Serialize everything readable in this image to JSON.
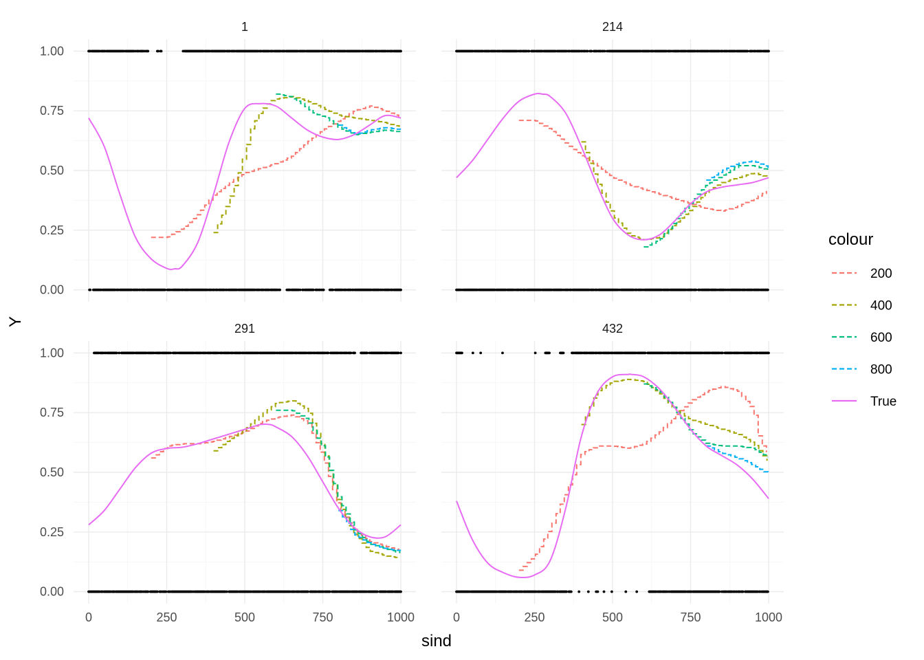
{
  "chart_data": {
    "type": "line",
    "xlabel": "sind",
    "ylabel": "Y",
    "xlim": [
      0,
      1000
    ],
    "ylim": [
      -0.05,
      1.05
    ],
    "x_ticks": [
      0,
      250,
      500,
      750,
      1000
    ],
    "x_tick_labels": [
      "0",
      "250",
      "500",
      "750",
      "1000"
    ],
    "y_ticks": [
      0,
      0.25,
      0.5,
      0.75,
      1.0
    ],
    "y_tick_labels": [
      "0.00",
      "0.25",
      "0.50",
      "0.75",
      "1.00"
    ],
    "grid": true,
    "legend": {
      "title": "colour",
      "position": "right",
      "entries": [
        {
          "name": "200",
          "color": "#F8766D",
          "dash": true
        },
        {
          "name": "400",
          "color": "#A3A500",
          "dash": true
        },
        {
          "name": "600",
          "color": "#00BF7D",
          "dash": true
        },
        {
          "name": "800",
          "color": "#00B0F6",
          "dash": true
        },
        {
          "name": "True",
          "color": "#E76BF3",
          "dash": false
        }
      ]
    },
    "points_description": "binary observations at Y=0 and Y=1 for each sind",
    "panels": [
      {
        "label": "1",
        "zero_gaps": [
          [
            615,
            630
          ],
          [
            755,
            770
          ]
        ],
        "one_gaps": [
          [
            195,
            215
          ],
          [
            235,
            255
          ],
          [
            260,
            300
          ]
        ],
        "series": [
          {
            "name": "True",
            "x": [
              0,
              50,
              100,
              150,
              200,
              250,
              275,
              300,
              350,
              400,
              450,
              500,
              550,
              600,
              650,
              700,
              750,
              800,
              850,
              900,
              950,
              1000
            ],
            "y": [
              0.72,
              0.6,
              0.4,
              0.22,
              0.13,
              0.09,
              0.088,
              0.1,
              0.2,
              0.4,
              0.62,
              0.76,
              0.78,
              0.77,
              0.72,
              0.67,
              0.64,
              0.63,
              0.65,
              0.69,
              0.73,
              0.72
            ]
          },
          {
            "name": "200",
            "x": [
              200,
              250,
              300,
              350,
              400,
              450,
              500,
              550,
              600,
              650,
              700,
              750,
              800,
              850,
              900,
              950,
              1000
            ],
            "y": [
              0.22,
              0.22,
              0.26,
              0.32,
              0.4,
              0.45,
              0.49,
              0.51,
              0.53,
              0.56,
              0.62,
              0.67,
              0.71,
              0.75,
              0.77,
              0.75,
              0.72
            ]
          },
          {
            "name": "400",
            "x": [
              400,
              440,
              470,
              500,
              520,
              550,
              580,
              600,
              650,
              700,
              750,
              800,
              850,
              900,
              950,
              1000
            ],
            "y": [
              0.24,
              0.35,
              0.45,
              0.58,
              0.68,
              0.75,
              0.79,
              0.8,
              0.81,
              0.79,
              0.76,
              0.73,
              0.72,
              0.71,
              0.7,
              0.68
            ]
          },
          {
            "name": "600",
            "x": [
              600,
              640,
              680,
              720,
              760,
              800,
              850,
              900,
              950,
              1000
            ],
            "y": [
              0.82,
              0.81,
              0.78,
              0.74,
              0.72,
              0.68,
              0.65,
              0.66,
              0.67,
              0.66
            ]
          },
          {
            "name": "800",
            "x": [
              800,
              850,
              900,
              950,
              1000
            ],
            "y": [
              0.69,
              0.65,
              0.67,
              0.68,
              0.67
            ]
          }
        ]
      },
      {
        "label": "214",
        "zero_gaps": [],
        "one_gaps": [],
        "series": [
          {
            "name": "True",
            "x": [
              0,
              50,
              100,
              150,
              200,
              250,
              275,
              300,
              350,
              400,
              450,
              500,
              550,
              600,
              650,
              700,
              750,
              800,
              850,
              900,
              950,
              1000
            ],
            "y": [
              0.47,
              0.54,
              0.63,
              0.72,
              0.79,
              0.82,
              0.82,
              0.81,
              0.74,
              0.6,
              0.44,
              0.3,
              0.23,
              0.21,
              0.23,
              0.29,
              0.36,
              0.41,
              0.43,
              0.44,
              0.45,
              0.47
            ]
          },
          {
            "name": "200",
            "x": [
              200,
              250,
              300,
              350,
              400,
              450,
              500,
              550,
              600,
              650,
              700,
              750,
              800,
              850,
              900,
              950,
              1000
            ],
            "y": [
              0.71,
              0.71,
              0.67,
              0.61,
              0.56,
              0.52,
              0.47,
              0.44,
              0.42,
              0.4,
              0.38,
              0.36,
              0.34,
              0.33,
              0.35,
              0.38,
              0.42
            ]
          },
          {
            "name": "400",
            "x": [
              400,
              450,
              500,
              550,
              600,
              650,
              700,
              750,
              800,
              850,
              900,
              950,
              1000
            ],
            "y": [
              0.62,
              0.45,
              0.31,
              0.23,
              0.21,
              0.22,
              0.28,
              0.34,
              0.41,
              0.45,
              0.47,
              0.49,
              0.47
            ]
          },
          {
            "name": "600",
            "x": [
              600,
              650,
              700,
              750,
              800,
              850,
              900,
              950,
              1000
            ],
            "y": [
              0.18,
              0.21,
              0.29,
              0.37,
              0.44,
              0.48,
              0.52,
              0.52,
              0.5
            ]
          },
          {
            "name": "800",
            "x": [
              800,
              850,
              900,
              950,
              1000
            ],
            "y": [
              0.46,
              0.5,
              0.53,
              0.54,
              0.51
            ]
          }
        ]
      },
      {
        "label": "291",
        "zero_gaps": [],
        "one_gaps": [
          [
            0,
            15
          ],
          [
            855,
            870
          ]
        ],
        "series": [
          {
            "name": "True",
            "x": [
              0,
              50,
              100,
              150,
              200,
              250,
              300,
              350,
              400,
              450,
              500,
              550,
              580,
              600,
              650,
              700,
              750,
              800,
              850,
              900,
              950,
              1000
            ],
            "y": [
              0.28,
              0.34,
              0.43,
              0.52,
              0.58,
              0.6,
              0.605,
              0.62,
              0.64,
              0.66,
              0.68,
              0.7,
              0.7,
              0.69,
              0.65,
              0.57,
              0.46,
              0.35,
              0.27,
              0.23,
              0.23,
              0.28
            ]
          },
          {
            "name": "200",
            "x": [
              200,
              250,
              300,
              350,
              400,
              450,
              500,
              550,
              600,
              650,
              700,
              750,
              800,
              850,
              900,
              950,
              1000
            ],
            "y": [
              0.56,
              0.61,
              0.62,
              0.62,
              0.63,
              0.65,
              0.67,
              0.71,
              0.73,
              0.74,
              0.71,
              0.56,
              0.35,
              0.26,
              0.21,
              0.19,
              0.17
            ]
          },
          {
            "name": "400",
            "x": [
              400,
              450,
              500,
              550,
              600,
              650,
              700,
              750,
              800,
              850,
              900,
              950,
              1000
            ],
            "y": [
              0.59,
              0.64,
              0.68,
              0.74,
              0.79,
              0.8,
              0.76,
              0.6,
              0.37,
              0.24,
              0.17,
              0.15,
              0.14
            ]
          },
          {
            "name": "600",
            "x": [
              600,
              650,
              700,
              750,
              800,
              850,
              900,
              950,
              1000
            ],
            "y": [
              0.76,
              0.76,
              0.72,
              0.6,
              0.39,
              0.26,
              0.2,
              0.18,
              0.16
            ]
          },
          {
            "name": "800",
            "x": [
              800,
              850,
              900,
              950,
              1000
            ],
            "y": [
              0.34,
              0.24,
              0.2,
              0.18,
              0.17
            ]
          }
        ]
      },
      {
        "label": "432",
        "zero_gaps": [
          [
            370,
            390
          ],
          [
            395,
            420
          ],
          [
            425,
            445
          ],
          [
            455,
            470
          ],
          [
            475,
            495
          ],
          [
            500,
            540
          ],
          [
            545,
            575
          ],
          [
            580,
            615
          ]
        ],
        "one_gaps": [
          [
            20,
            50
          ],
          [
            55,
            75
          ],
          [
            80,
            120
          ],
          [
            125,
            145
          ],
          [
            150,
            180
          ],
          [
            185,
            230
          ],
          [
            235,
            250
          ],
          [
            255,
            280
          ],
          [
            300,
            330
          ],
          [
            345,
            365
          ]
        ],
        "series": [
          {
            "name": "True",
            "x": [
              0,
              50,
              100,
              150,
              200,
              250,
              300,
              350,
              400,
              450,
              500,
              550,
              560,
              600,
              650,
              700,
              750,
              800,
              850,
              900,
              950,
              1000
            ],
            "y": [
              0.38,
              0.22,
              0.12,
              0.08,
              0.06,
              0.07,
              0.13,
              0.35,
              0.65,
              0.83,
              0.9,
              0.91,
              0.91,
              0.9,
              0.85,
              0.77,
              0.68,
              0.61,
              0.57,
              0.53,
              0.47,
              0.39
            ]
          },
          {
            "name": "200",
            "x": [
              200,
              250,
              300,
              350,
              400,
              450,
              500,
              550,
              600,
              650,
              700,
              750,
              800,
              850,
              900,
              950,
              970,
              1000
            ],
            "y": [
              0.09,
              0.15,
              0.27,
              0.42,
              0.58,
              0.61,
              0.61,
              0.6,
              0.62,
              0.67,
              0.74,
              0.8,
              0.84,
              0.86,
              0.84,
              0.76,
              0.63,
              0.57
            ]
          },
          {
            "name": "400",
            "x": [
              400,
              450,
              500,
              550,
              600,
              650,
              700,
              750,
              800,
              850,
              900,
              950,
              1000
            ],
            "y": [
              0.7,
              0.84,
              0.88,
              0.89,
              0.88,
              0.83,
              0.76,
              0.72,
              0.7,
              0.68,
              0.66,
              0.62,
              0.54
            ]
          },
          {
            "name": "600",
            "x": [
              600,
              650,
              700,
              750,
              800,
              850,
              900,
              950,
              1000
            ],
            "y": [
              0.87,
              0.84,
              0.76,
              0.67,
              0.62,
              0.61,
              0.61,
              0.6,
              0.56
            ]
          },
          {
            "name": "800",
            "x": [
              800,
              850,
              900,
              950,
              1000
            ],
            "y": [
              0.61,
              0.58,
              0.56,
              0.53,
              0.49
            ]
          }
        ]
      }
    ]
  }
}
